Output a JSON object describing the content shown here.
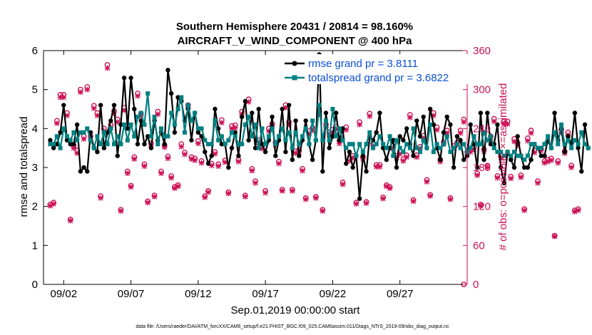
{
  "chart_data": {
    "type": "line",
    "title": [
      "Southern Hemisphere 20431 / 20814 = 98.160%",
      "AIRCRAFT_V_WIND_COMPONENT @ 400 hPa"
    ],
    "xlabel": "Sep.01,2019 00:00:00 start",
    "ylabel_left": "rmse and totalspread",
    "ylabel_right": "# of obs: o=possible; ×=assimilated",
    "xlim": [
      0.5,
      32.0
    ],
    "ylim_left": [
      0,
      6
    ],
    "ylim_right": [
      0,
      360
    ],
    "xticks": [
      {
        "x": 2,
        "label": "09/02"
      },
      {
        "x": 7,
        "label": "09/07"
      },
      {
        "x": 12,
        "label": "09/12"
      },
      {
        "x": 17,
        "label": "09/17"
      },
      {
        "x": 22,
        "label": "09/22"
      },
      {
        "x": 27,
        "label": "09/27"
      }
    ],
    "yticks_left": [
      0,
      1,
      2,
      3,
      4,
      5,
      6
    ],
    "yticks_right": [
      0,
      60,
      120,
      180,
      240,
      300,
      360
    ],
    "legend": [
      {
        "name": "rmse grand pr = 3.8111",
        "color": "#000000"
      },
      {
        "name": "totalspread grand pr = 3.6822",
        "color": "#008080"
      }
    ],
    "colors": {
      "rmse": "#000000",
      "spread": "#008080",
      "obs": "#cc1155",
      "legend_text": "#0a4fd6"
    },
    "series": [
      {
        "name": "rmse",
        "axis": "left",
        "x_start": 1.0,
        "x_step": 0.25,
        "values": [
          3.7,
          3.5,
          3.6,
          3.9,
          4.6,
          3.7,
          3.6,
          3.6,
          4.1,
          2.9,
          3.0,
          2.9,
          3.9,
          3.5,
          3.4,
          4.6,
          3.5,
          3.9,
          4.2,
          4.6,
          3.3,
          4.1,
          5.3,
          4.0,
          5.3,
          4.5,
          3.6,
          4.2,
          3.6,
          3.8,
          3.5,
          4.2,
          3.7,
          3.9,
          3.6,
          5.5,
          4.9,
          3.9,
          4.8,
          4.7,
          4.2,
          4.5,
          3.7,
          4.4,
          3.9,
          3.8,
          3.4,
          3.1,
          3.3,
          4.5,
          4.0,
          3.6,
          3.6,
          3.0,
          3.5,
          3.9,
          3.3,
          4.3,
          4.7,
          3.7,
          4.4,
          3.5,
          4.5,
          3.6,
          3.4,
          3.7,
          4.3,
          3.3,
          3.7,
          4.5,
          3.4,
          4.6,
          3.2,
          4.2,
          3.3,
          3.7,
          4.2,
          3.6,
          3.2,
          3.7,
          5.9,
          2.9,
          4.4,
          3.5,
          3.8,
          4.4,
          3.7,
          4.0,
          3.1,
          3.4,
          3.0,
          3.3,
          2.2,
          3.3,
          2.9,
          3.8,
          3.7,
          3.9,
          4.4,
          3.5,
          3.2,
          3.5,
          3.7,
          3.0,
          3.8,
          3.7,
          4.0,
          3.6,
          3.3,
          4.2,
          3.8,
          4.3,
          3.5,
          4.5,
          4.1,
          3.5,
          3.2,
          3.9,
          4.3,
          4.1,
          3.0,
          3.8,
          3.7,
          3.2,
          3.3,
          4.1,
          3.6,
          3.0,
          4.4,
          3.2,
          4.4,
          3.6,
          3.6,
          4.1,
          3.0,
          2.6,
          3.4,
          3.2,
          3.0,
          3.8,
          3.3,
          3.0,
          3.0,
          3.2,
          3.6,
          3.5,
          3.3,
          3.3,
          3.7,
          3.5,
          4.4,
          3.7,
          4.0,
          3.4,
          3.8,
          3.6,
          4.4,
          3.5,
          2.9,
          4.1,
          3.5
        ]
      },
      {
        "name": "totalspread",
        "axis": "left",
        "x_start": 1.0,
        "x_step": 0.25,
        "values": [
          3.6,
          3.6,
          3.8,
          3.5,
          4.0,
          3.8,
          3.7,
          3.9,
          3.7,
          3.9,
          3.9,
          4.0,
          3.7,
          3.5,
          3.8,
          3.6,
          3.9,
          3.6,
          4.0,
          3.6,
          3.8,
          3.6,
          4.1,
          3.7,
          4.1,
          3.8,
          4.3,
          4.4,
          4.1,
          4.9,
          3.8,
          4.3,
          3.6,
          4.0,
          3.8,
          3.8,
          4.4,
          4.1,
          4.5,
          4.8,
          3.9,
          4.6,
          4.2,
          4.4,
          4.0,
          4.0,
          3.7,
          3.6,
          3.6,
          4.2,
          3.7,
          3.8,
          3.6,
          3.7,
          3.9,
          3.8,
          3.6,
          3.6,
          4.1,
          4.3,
          3.8,
          4.1,
          3.5,
          4.0,
          3.6,
          3.8,
          4.0,
          3.6,
          3.8,
          4.0,
          3.7,
          3.9,
          3.5,
          3.9,
          3.6,
          3.8,
          4.0,
          3.6,
          4.2,
          3.7,
          4.6,
          3.7,
          4.2,
          3.7,
          4.5,
          3.8,
          4.0,
          3.7,
          3.5,
          3.6,
          3.6,
          3.3,
          3.6,
          3.4,
          3.6,
          3.9,
          3.5,
          3.6,
          3.8,
          3.6,
          3.5,
          3.8,
          3.3,
          3.7,
          3.5,
          3.4,
          3.6,
          3.5,
          4.0,
          3.5,
          3.4,
          3.7,
          3.5,
          4.1,
          3.4,
          3.6,
          3.5,
          3.6,
          3.8,
          3.4,
          3.5,
          3.6,
          3.5,
          3.6,
          3.4,
          3.5,
          3.8,
          3.6,
          3.6,
          3.9,
          3.7,
          3.8,
          3.5,
          3.4,
          3.4,
          3.3,
          3.4,
          3.3,
          3.4,
          3.3,
          3.3,
          3.2,
          3.3,
          3.6,
          3.6,
          3.5,
          3.5,
          3.6,
          3.8,
          3.5,
          3.9,
          3.6,
          4.1,
          3.6,
          3.7,
          3.5,
          3.7,
          3.6,
          3.9,
          3.6,
          3.5
        ]
      },
      {
        "name": "obs possible",
        "axis": "right",
        "marker": "o",
        "x_start": 1.0,
        "x_step": 0.25,
        "values": [
          123,
          126,
          252,
          292,
          292,
          264,
          100,
          213,
          206,
          300,
          228,
          304,
          228,
          275,
          264,
          136,
          240,
          338,
          246,
          267,
          254,
          115,
          272,
          174,
          152,
          196,
          294,
          263,
          185,
          128,
          217,
          137,
          266,
          174,
          214,
          197,
          167,
          150,
          153,
          216,
          203,
          276,
          196,
          194,
          221,
          190,
          136,
          144,
          186,
          204,
          185,
          253,
          191,
          142,
          244,
          245,
          192,
          266,
          137,
          285,
          178,
          159,
          222,
          212,
          144,
          240,
          247,
          218,
          189,
          146,
          276,
          250,
          146,
          205,
          207,
          178,
          133,
          236,
          241,
          135,
          266,
          115,
          246,
          234,
          238,
          243,
          221,
          157,
          242,
          193,
          198,
          126,
          250,
          196,
          127,
          263,
          217,
          184,
          184,
          134,
          153,
          150,
          213,
          198,
          204,
          193,
          199,
          261,
          130,
          199,
          212,
          229,
          161,
          138,
          264,
          242,
          192,
          219,
          237,
          133,
          213,
          218,
          237,
          254,
          204,
          207,
          211,
          171,
          123,
          208,
          183,
          228,
          255,
          167,
          198,
          251,
          251,
          166,
          224,
          218,
          168,
          116,
          225,
          237,
          206,
          159,
          209,
          190,
          192,
          194,
          75,
          190,
          238,
          205,
          234,
          183,
          114,
          116
        ]
      },
      {
        "name": "obs assimilated",
        "axis": "right",
        "marker": "x",
        "x_start": 1.0,
        "x_step": 0.25,
        "values": [
          121,
          124,
          248,
          288,
          288,
          260,
          98,
          210,
          202,
          296,
          224,
          300,
          224,
          271,
          260,
          133,
          236,
          333,
          242,
          263,
          250,
          113,
          268,
          171,
          150,
          193,
          290,
          259,
          182,
          126,
          213,
          135,
          262,
          171,
          211,
          194,
          164,
          148,
          151,
          212,
          200,
          272,
          193,
          191,
          217,
          187,
          134,
          142,
          183,
          201,
          182,
          249,
          188,
          140,
          240,
          241,
          189,
          262,
          135,
          281,
          175,
          156,
          218,
          209,
          141,
          236,
          243,
          214,
          186,
          144,
          272,
          246,
          144,
          202,
          204,
          175,
          131,
          232,
          237,
          133,
          262,
          113,
          242,
          230,
          234,
          239,
          217,
          154,
          238,
          190,
          195,
          124,
          246,
          193,
          125,
          259,
          213,
          181,
          181,
          132,
          151,
          148,
          210,
          195,
          201,
          190,
          196,
          257,
          128,
          196,
          209,
          225,
          158,
          136,
          260,
          238,
          189,
          216,
          233,
          131,
          210,
          215,
          233,
          250,
          201,
          204,
          208,
          168,
          121,
          205,
          180,
          224,
          251,
          164,
          195,
          247,
          247,
          163,
          220,
          214,
          165,
          114,
          221,
          233,
          203,
          156,
          206,
          187,
          189,
          191,
          74,
          187,
          234,
          202,
          230,
          180,
          112,
          114
        ]
      },
      {
        "name": "obs end",
        "axis": "right",
        "marker": "o",
        "x_start": 31.75,
        "x_step": 0.25,
        "values": [
          0
        ]
      }
    ]
  },
  "footer": "data file: /Users/raeder/DAI/ATM_forcXX/CAM6_setup/f.e21.FHIST_BGC.f09_025.CAM6assim.011/Diags_NTrS_2019-09/obs_diag_output.nc"
}
